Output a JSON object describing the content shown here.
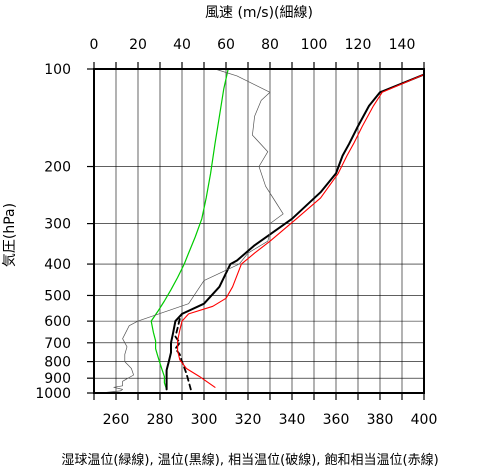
{
  "chart_data": {
    "type": "line",
    "title": "",
    "top_axis": {
      "label": "風速 (m/s)(細線)",
      "range": [
        0,
        150
      ],
      "ticks": [
        "0",
        "20",
        "40",
        "60",
        "80",
        "100",
        "120",
        "140"
      ],
      "tick_values": [
        0,
        20,
        40,
        60,
        80,
        100,
        120,
        140
      ]
    },
    "x_axis": {
      "label": "湿球温位(緑線), 温位(黒線), 相当温位(破線), 飽和相当温位(赤線)",
      "range": [
        250,
        400
      ],
      "ticks": [
        "260",
        "280",
        "300",
        "320",
        "340",
        "360",
        "380",
        "400"
      ],
      "tick_values": [
        260,
        280,
        300,
        320,
        340,
        360,
        380,
        400
      ]
    },
    "y_axis": {
      "label": "気圧(hPa)",
      "scale": "log",
      "inverted": true,
      "range": [
        1000,
        100
      ],
      "ticks": [
        "100",
        "200",
        "300",
        "400",
        "500",
        "600",
        "700",
        "800",
        "900",
        "1000"
      ],
      "tick_values": [
        100,
        200,
        300,
        400,
        500,
        600,
        700,
        800,
        900,
        1000
      ]
    },
    "grid": true,
    "series": [
      {
        "name": "湿球温位",
        "color": "#00cc00",
        "style": "solid",
        "points": [
          [
            283,
            975
          ],
          [
            282,
            930
          ],
          [
            282,
            890
          ],
          [
            281,
            850
          ],
          [
            280,
            810
          ],
          [
            279,
            770
          ],
          [
            278,
            730
          ],
          [
            278,
            690
          ],
          [
            277,
            650
          ],
          [
            276,
            600
          ],
          [
            279,
            560
          ],
          [
            282,
            520
          ],
          [
            285,
            480
          ],
          [
            288,
            440
          ],
          [
            291,
            400
          ],
          [
            293,
            370
          ],
          [
            296,
            330
          ],
          [
            299,
            290
          ],
          [
            301,
            250
          ],
          [
            303,
            210
          ],
          [
            305,
            170
          ],
          [
            307,
            140
          ],
          [
            309,
            115
          ],
          [
            311,
            100
          ]
        ]
      },
      {
        "name": "温位",
        "color": "#000000",
        "style": "solid",
        "points": [
          [
            283,
            975
          ],
          [
            283,
            940
          ],
          [
            283,
            900
          ],
          [
            283,
            850
          ],
          [
            284,
            800
          ],
          [
            285,
            750
          ],
          [
            285,
            700
          ],
          [
            286,
            650
          ],
          [
            287,
            600
          ],
          [
            290,
            570
          ],
          [
            300,
            530
          ],
          [
            307,
            470
          ],
          [
            312,
            400
          ],
          [
            315,
            390
          ],
          [
            323,
            350
          ],
          [
            340,
            290
          ],
          [
            353,
            240
          ],
          [
            360,
            210
          ],
          [
            363,
            185
          ],
          [
            366,
            170
          ],
          [
            370,
            150
          ],
          [
            375,
            130
          ],
          [
            380,
            118
          ],
          [
            400,
            104
          ]
        ]
      },
      {
        "name": "相当温位",
        "color": "#000000",
        "style": "dashed",
        "points": [
          [
            294,
            975
          ],
          [
            293,
            920
          ],
          [
            292,
            870
          ],
          [
            290,
            800
          ],
          [
            289,
            760
          ],
          [
            287,
            730
          ],
          [
            289,
            700
          ],
          [
            287,
            670
          ],
          [
            288,
            630
          ],
          [
            289,
            590
          ],
          [
            290,
            570
          ]
        ]
      },
      {
        "name": "飽和相当温位",
        "color": "#ff0000",
        "style": "solid",
        "points": [
          [
            305,
            960
          ],
          [
            298,
            890
          ],
          [
            292,
            840
          ],
          [
            289,
            790
          ],
          [
            288,
            740
          ],
          [
            288,
            690
          ],
          [
            289,
            640
          ],
          [
            290,
            600
          ],
          [
            293,
            570
          ],
          [
            304,
            540
          ],
          [
            310,
            510
          ],
          [
            313,
            470
          ],
          [
            317,
            400
          ],
          [
            323,
            370
          ],
          [
            330,
            340
          ],
          [
            342,
            290
          ],
          [
            353,
            250
          ],
          [
            361,
            210
          ],
          [
            365,
            185
          ],
          [
            368,
            170
          ],
          [
            372,
            150
          ],
          [
            377,
            130
          ],
          [
            381,
            118
          ],
          [
            400,
            104
          ]
        ]
      },
      {
        "name": "風速",
        "color": "#555555",
        "style": "thin",
        "points": [
          [
            3,
            1000
          ],
          [
            12,
            985
          ],
          [
            13,
            975
          ],
          [
            9,
            960
          ],
          [
            13,
            950
          ],
          [
            13,
            920
          ],
          [
            18,
            880
          ],
          [
            17,
            840
          ],
          [
            14,
            800
          ],
          [
            14,
            760
          ],
          [
            15,
            720
          ],
          [
            13,
            680
          ],
          [
            16,
            620
          ],
          [
            20,
            600
          ],
          [
            43,
            530
          ],
          [
            50,
            450
          ],
          [
            66,
            400
          ],
          [
            70,
            370
          ],
          [
            79,
            340
          ],
          [
            80,
            320
          ],
          [
            80,
            300
          ],
          [
            86,
            280
          ],
          [
            83,
            260
          ],
          [
            78,
            230
          ],
          [
            75,
            200
          ],
          [
            79,
            180
          ],
          [
            72,
            160
          ],
          [
            73,
            140
          ],
          [
            76,
            125
          ],
          [
            80,
            118
          ],
          [
            65,
            105
          ],
          [
            55,
            100
          ]
        ]
      }
    ]
  }
}
